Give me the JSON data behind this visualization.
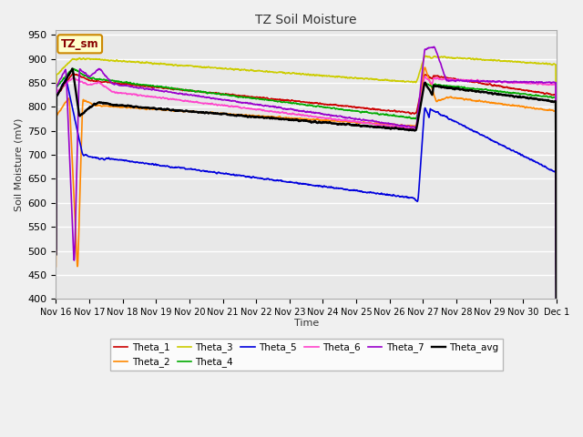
{
  "title": "TZ Soil Moisture",
  "ylabel": "Soil Moisture (mV)",
  "xlabel": "Time",
  "ylim": [
    400,
    960
  ],
  "yticks": [
    400,
    450,
    500,
    550,
    600,
    650,
    700,
    750,
    800,
    850,
    900,
    950
  ],
  "xtick_labels": [
    "Nov 16",
    "Nov 17",
    "Nov 18",
    "Nov 19",
    "Nov 20",
    "Nov 21",
    "Nov 22",
    "Nov 23",
    "Nov 24",
    "Nov 25",
    "Nov 26",
    "Nov 27",
    "Nov 28",
    "Nov 29",
    "Nov 30",
    "Dec 1"
  ],
  "colors": {
    "Theta_1": "#cc0000",
    "Theta_2": "#ff8800",
    "Theta_3": "#cccc00",
    "Theta_4": "#00aa00",
    "Theta_5": "#0000dd",
    "Theta_6": "#ff44cc",
    "Theta_7": "#9900cc",
    "Theta_avg": "#000000"
  },
  "bg_color": "#e8e8e8",
  "legend_box_color": "#ffffcc",
  "legend_box_edge": "#cc8800",
  "legend_text_color": "#880000",
  "legend_box_label": "TZ_sm",
  "line_width": 1.2
}
